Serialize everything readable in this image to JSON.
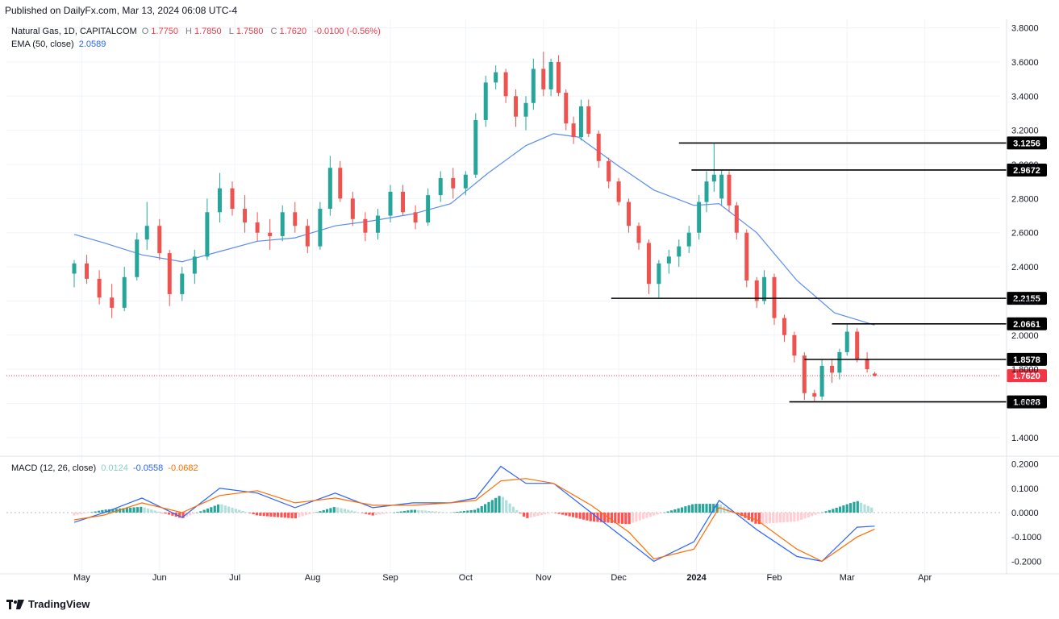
{
  "published": "Published on DailyFx.com, Mar 13, 2024 06:08 UTC-4",
  "brand": "TradingView",
  "main_legend": {
    "instrument": "Natural Gas, 1D, CAPITALCOM",
    "open_label": "O",
    "open": "1.7750",
    "high_label": "H",
    "high": "1.7850",
    "low_label": "L",
    "low": "1.7580",
    "close_label": "C",
    "close": "1.7620",
    "change": "-0.0100 (-0.56%)"
  },
  "ema_legend": {
    "label": "EMA (50, close)",
    "value": "2.0589"
  },
  "macd_legend": {
    "label": "MACD (12, 26, close)",
    "hist": "0.0124",
    "macd": "-0.0558",
    "signal": "-0.0682"
  },
  "colors": {
    "up": "#26a69a",
    "down": "#ef5350",
    "ema": "#5b8def",
    "macd": "#2962ff",
    "signal": "#ff6d00",
    "price_line": "#f23645",
    "level": "#000000"
  },
  "chart_data": [
    {
      "type": "candlestick",
      "title": "Natural Gas, 1D, CAPITALCOM",
      "x_tick_labels": [
        "May",
        "Jun",
        "Jul",
        "Aug",
        "Sep",
        "Oct",
        "Nov",
        "Dec",
        "2024",
        "Feb",
        "Mar",
        "Apr"
      ],
      "y_tick_labels": [
        "3.8000",
        "3.6000",
        "3.4000",
        "3.2000",
        "3.0000",
        "2.8000",
        "2.6000",
        "2.4000",
        "2.2000",
        "2.0000",
        "1.8000",
        "1.6000",
        "1.4000"
      ],
      "ylim": [
        1.3,
        3.85
      ],
      "last_price": 1.762,
      "last_price_label": "1.7620",
      "horizontal_levels": [
        {
          "value": 3.1256,
          "label": "3.1256",
          "from": "2023-12-25",
          "to": "2024-02-27"
        },
        {
          "value": 2.9672,
          "label": "2.9672",
          "from": "2023-12-30",
          "to": "2024-02-27"
        },
        {
          "value": 2.2155,
          "label": "2.2155",
          "from": "2023-11-28",
          "to": "2024-02-27"
        },
        {
          "value": 2.0661,
          "label": "2.0661",
          "from": "2024-02-24",
          "to": "2024-02-27"
        },
        {
          "value": 1.8578,
          "label": "1.8578",
          "from": "2024-02-13",
          "to": "2024-02-27"
        },
        {
          "value": 1.6088,
          "label": "1.6088",
          "from": "2024-02-07",
          "to": "2024-02-27"
        }
      ],
      "ema_50": [
        {
          "date": "2023-04-28",
          "value": 2.59
        },
        {
          "date": "2023-05-10",
          "value": 2.54
        },
        {
          "date": "2023-05-25",
          "value": 2.47
        },
        {
          "date": "2023-06-10",
          "value": 2.43
        },
        {
          "date": "2023-06-25",
          "value": 2.49
        },
        {
          "date": "2023-07-10",
          "value": 2.55
        },
        {
          "date": "2023-07-25",
          "value": 2.57
        },
        {
          "date": "2023-08-10",
          "value": 2.64
        },
        {
          "date": "2023-08-25",
          "value": 2.67
        },
        {
          "date": "2023-09-10",
          "value": 2.71
        },
        {
          "date": "2023-09-25",
          "value": 2.77
        },
        {
          "date": "2023-10-10",
          "value": 2.95
        },
        {
          "date": "2023-10-25",
          "value": 3.11
        },
        {
          "date": "2023-11-05",
          "value": 3.18
        },
        {
          "date": "2023-11-15",
          "value": 3.16
        },
        {
          "date": "2023-11-30",
          "value": 3.0
        },
        {
          "date": "2023-12-15",
          "value": 2.85
        },
        {
          "date": "2023-12-31",
          "value": 2.76
        },
        {
          "date": "2024-01-10",
          "value": 2.77
        },
        {
          "date": "2024-01-25",
          "value": 2.6
        },
        {
          "date": "2024-02-10",
          "value": 2.32
        },
        {
          "date": "2024-02-25",
          "value": 2.13
        },
        {
          "date": "2024-03-12",
          "value": 2.0589
        }
      ],
      "candles": [
        {
          "date": "2023-04-28",
          "o": 2.36,
          "h": 2.44,
          "l": 2.28,
          "c": 2.42
        },
        {
          "date": "2023-05-03",
          "o": 2.42,
          "h": 2.47,
          "l": 2.3,
          "c": 2.33
        },
        {
          "date": "2023-05-08",
          "o": 2.33,
          "h": 2.38,
          "l": 2.18,
          "c": 2.22
        },
        {
          "date": "2023-05-13",
          "o": 2.22,
          "h": 2.3,
          "l": 2.1,
          "c": 2.16
        },
        {
          "date": "2023-05-18",
          "o": 2.16,
          "h": 2.4,
          "l": 2.14,
          "c": 2.34
        },
        {
          "date": "2023-05-23",
          "o": 2.34,
          "h": 2.6,
          "l": 2.32,
          "c": 2.56
        },
        {
          "date": "2023-05-27",
          "o": 2.56,
          "h": 2.78,
          "l": 2.5,
          "c": 2.64
        },
        {
          "date": "2023-06-01",
          "o": 2.64,
          "h": 2.68,
          "l": 2.44,
          "c": 2.48
        },
        {
          "date": "2023-06-05",
          "o": 2.48,
          "h": 2.5,
          "l": 2.17,
          "c": 2.24
        },
        {
          "date": "2023-06-10",
          "o": 2.24,
          "h": 2.4,
          "l": 2.2,
          "c": 2.36
        },
        {
          "date": "2023-06-15",
          "o": 2.36,
          "h": 2.5,
          "l": 2.3,
          "c": 2.46
        },
        {
          "date": "2023-06-20",
          "o": 2.46,
          "h": 2.8,
          "l": 2.44,
          "c": 2.72
        },
        {
          "date": "2023-06-25",
          "o": 2.72,
          "h": 2.95,
          "l": 2.66,
          "c": 2.86
        },
        {
          "date": "2023-06-30",
          "o": 2.86,
          "h": 2.9,
          "l": 2.7,
          "c": 2.74
        },
        {
          "date": "2023-07-05",
          "o": 2.74,
          "h": 2.82,
          "l": 2.6,
          "c": 2.66
        },
        {
          "date": "2023-07-10",
          "o": 2.66,
          "h": 2.72,
          "l": 2.55,
          "c": 2.6
        },
        {
          "date": "2023-07-15",
          "o": 2.6,
          "h": 2.68,
          "l": 2.5,
          "c": 2.58
        },
        {
          "date": "2023-07-20",
          "o": 2.58,
          "h": 2.76,
          "l": 2.55,
          "c": 2.72
        },
        {
          "date": "2023-07-25",
          "o": 2.72,
          "h": 2.78,
          "l": 2.6,
          "c": 2.64
        },
        {
          "date": "2023-07-30",
          "o": 2.64,
          "h": 2.68,
          "l": 2.48,
          "c": 2.52
        },
        {
          "date": "2023-08-04",
          "o": 2.52,
          "h": 2.78,
          "l": 2.5,
          "c": 2.74
        },
        {
          "date": "2023-08-08",
          "o": 2.74,
          "h": 3.05,
          "l": 2.7,
          "c": 2.98
        },
        {
          "date": "2023-08-12",
          "o": 2.98,
          "h": 3.02,
          "l": 2.78,
          "c": 2.8
        },
        {
          "date": "2023-08-17",
          "o": 2.8,
          "h": 2.84,
          "l": 2.64,
          "c": 2.68
        },
        {
          "date": "2023-08-22",
          "o": 2.68,
          "h": 2.72,
          "l": 2.55,
          "c": 2.6
        },
        {
          "date": "2023-08-27",
          "o": 2.6,
          "h": 2.74,
          "l": 2.56,
          "c": 2.7
        },
        {
          "date": "2023-09-01",
          "o": 2.7,
          "h": 2.88,
          "l": 2.66,
          "c": 2.84
        },
        {
          "date": "2023-09-06",
          "o": 2.84,
          "h": 2.88,
          "l": 2.7,
          "c": 2.72
        },
        {
          "date": "2023-09-11",
          "o": 2.72,
          "h": 2.76,
          "l": 2.62,
          "c": 2.66
        },
        {
          "date": "2023-09-16",
          "o": 2.66,
          "h": 2.86,
          "l": 2.64,
          "c": 2.82
        },
        {
          "date": "2023-09-21",
          "o": 2.82,
          "h": 2.96,
          "l": 2.78,
          "c": 2.92
        },
        {
          "date": "2023-09-26",
          "o": 2.92,
          "h": 2.98,
          "l": 2.8,
          "c": 2.86
        },
        {
          "date": "2023-10-01",
          "o": 2.86,
          "h": 2.96,
          "l": 2.82,
          "c": 2.94
        },
        {
          "date": "2023-10-05",
          "o": 2.94,
          "h": 3.3,
          "l": 2.92,
          "c": 3.26
        },
        {
          "date": "2023-10-09",
          "o": 3.26,
          "h": 3.52,
          "l": 3.22,
          "c": 3.48
        },
        {
          "date": "2023-10-13",
          "o": 3.48,
          "h": 3.58,
          "l": 3.44,
          "c": 3.54
        },
        {
          "date": "2023-10-17",
          "o": 3.54,
          "h": 3.56,
          "l": 3.36,
          "c": 3.4
        },
        {
          "date": "2023-10-21",
          "o": 3.4,
          "h": 3.44,
          "l": 3.22,
          "c": 3.28
        },
        {
          "date": "2023-10-25",
          "o": 3.28,
          "h": 3.4,
          "l": 3.2,
          "c": 3.36
        },
        {
          "date": "2023-10-28",
          "o": 3.36,
          "h": 3.62,
          "l": 3.32,
          "c": 3.56
        },
        {
          "date": "2023-11-01",
          "o": 3.56,
          "h": 3.66,
          "l": 3.4,
          "c": 3.44
        },
        {
          "date": "2023-11-04",
          "o": 3.44,
          "h": 3.62,
          "l": 3.4,
          "c": 3.6
        },
        {
          "date": "2023-11-07",
          "o": 3.6,
          "h": 3.64,
          "l": 3.4,
          "c": 3.42
        },
        {
          "date": "2023-11-10",
          "o": 3.42,
          "h": 3.44,
          "l": 3.2,
          "c": 3.24
        },
        {
          "date": "2023-11-13",
          "o": 3.24,
          "h": 3.28,
          "l": 3.12,
          "c": 3.16
        },
        {
          "date": "2023-11-16",
          "o": 3.16,
          "h": 3.38,
          "l": 3.14,
          "c": 3.34
        },
        {
          "date": "2023-11-19",
          "o": 3.34,
          "h": 3.38,
          "l": 3.16,
          "c": 3.18
        },
        {
          "date": "2023-11-23",
          "o": 3.18,
          "h": 3.2,
          "l": 2.98,
          "c": 3.02
        },
        {
          "date": "2023-11-27",
          "o": 3.02,
          "h": 3.04,
          "l": 2.86,
          "c": 2.9
        },
        {
          "date": "2023-12-01",
          "o": 2.9,
          "h": 2.92,
          "l": 2.76,
          "c": 2.78
        },
        {
          "date": "2023-12-05",
          "o": 2.78,
          "h": 2.8,
          "l": 2.6,
          "c": 2.64
        },
        {
          "date": "2023-12-09",
          "o": 2.64,
          "h": 2.66,
          "l": 2.5,
          "c": 2.54
        },
        {
          "date": "2023-12-13",
          "o": 2.54,
          "h": 2.56,
          "l": 2.24,
          "c": 2.3
        },
        {
          "date": "2023-12-17",
          "o": 2.3,
          "h": 2.44,
          "l": 2.22,
          "c": 2.42
        },
        {
          "date": "2023-12-21",
          "o": 2.42,
          "h": 2.5,
          "l": 2.36,
          "c": 2.46
        },
        {
          "date": "2023-12-25",
          "o": 2.46,
          "h": 2.56,
          "l": 2.4,
          "c": 2.52
        },
        {
          "date": "2023-12-29",
          "o": 2.52,
          "h": 2.64,
          "l": 2.48,
          "c": 2.6
        },
        {
          "date": "2024-01-02",
          "o": 2.6,
          "h": 2.82,
          "l": 2.56,
          "c": 2.78
        },
        {
          "date": "2024-01-05",
          "o": 2.78,
          "h": 2.96,
          "l": 2.72,
          "c": 2.9
        },
        {
          "date": "2024-01-08",
          "o": 2.9,
          "h": 3.1256,
          "l": 2.84,
          "c": 2.94
        },
        {
          "date": "2024-01-11",
          "o": 2.8,
          "h": 2.9672,
          "l": 2.76,
          "c": 2.94
        },
        {
          "date": "2024-01-14",
          "o": 2.94,
          "h": 2.96,
          "l": 2.72,
          "c": 2.76
        },
        {
          "date": "2024-01-17",
          "o": 2.76,
          "h": 2.78,
          "l": 2.56,
          "c": 2.6
        },
        {
          "date": "2024-01-21",
          "o": 2.6,
          "h": 2.62,
          "l": 2.28,
          "c": 2.32
        },
        {
          "date": "2024-01-25",
          "o": 2.32,
          "h": 2.34,
          "l": 2.16,
          "c": 2.2
        },
        {
          "date": "2024-01-28",
          "o": 2.2,
          "h": 2.38,
          "l": 2.18,
          "c": 2.34
        },
        {
          "date": "2024-02-01",
          "o": 2.34,
          "h": 2.36,
          "l": 2.06,
          "c": 2.1
        },
        {
          "date": "2024-02-05",
          "o": 2.1,
          "h": 2.12,
          "l": 1.96,
          "c": 2.0
        },
        {
          "date": "2024-02-09",
          "o": 2.0,
          "h": 2.02,
          "l": 1.84,
          "c": 1.88
        },
        {
          "date": "2024-02-13",
          "o": 1.88,
          "h": 1.9,
          "l": 1.62,
          "c": 1.66
        },
        {
          "date": "2024-02-17",
          "o": 1.66,
          "h": 1.68,
          "l": 1.6088,
          "c": 1.64
        },
        {
          "date": "2024-02-20",
          "o": 1.64,
          "h": 1.8578,
          "l": 1.62,
          "c": 1.82
        },
        {
          "date": "2024-02-24",
          "o": 1.82,
          "h": 1.86,
          "l": 1.72,
          "c": 1.78
        },
        {
          "date": "2024-02-27",
          "o": 1.78,
          "h": 1.92,
          "l": 1.74,
          "c": 1.9
        },
        {
          "date": "2024-03-01",
          "o": 1.9,
          "h": 2.0661,
          "l": 1.88,
          "c": 2.02
        },
        {
          "date": "2024-03-05",
          "o": 2.02,
          "h": 2.04,
          "l": 1.84,
          "c": 1.86
        },
        {
          "date": "2024-03-09",
          "o": 1.86,
          "h": 1.9,
          "l": 1.78,
          "c": 1.8
        },
        {
          "date": "2024-03-12",
          "o": 1.775,
          "h": 1.785,
          "l": 1.758,
          "c": 1.762
        }
      ]
    },
    {
      "type": "macd",
      "title": "MACD (12, 26, close)",
      "y_tick_labels": [
        "0.2000",
        "0.1000",
        "0.0000",
        "-0.1000",
        "-0.2000"
      ],
      "ylim": [
        -0.245,
        0.225
      ],
      "macd": [
        {
          "date": "2023-04-28",
          "value": -0.04
        },
        {
          "date": "2023-05-10",
          "value": 0.0
        },
        {
          "date": "2023-05-25",
          "value": 0.06
        },
        {
          "date": "2023-06-10",
          "value": -0.02
        },
        {
          "date": "2023-06-25",
          "value": 0.1
        },
        {
          "date": "2023-07-10",
          "value": 0.08
        },
        {
          "date": "2023-07-25",
          "value": 0.02
        },
        {
          "date": "2023-08-10",
          "value": 0.08
        },
        {
          "date": "2023-08-25",
          "value": 0.02
        },
        {
          "date": "2023-09-10",
          "value": 0.04
        },
        {
          "date": "2023-09-25",
          "value": 0.04
        },
        {
          "date": "2023-10-05",
          "value": 0.06
        },
        {
          "date": "2023-10-15",
          "value": 0.19
        },
        {
          "date": "2023-10-25",
          "value": 0.12
        },
        {
          "date": "2023-11-05",
          "value": 0.12
        },
        {
          "date": "2023-11-20",
          "value": 0.0
        },
        {
          "date": "2023-12-05",
          "value": -0.12
        },
        {
          "date": "2023-12-15",
          "value": -0.2
        },
        {
          "date": "2023-12-31",
          "value": -0.12
        },
        {
          "date": "2024-01-10",
          "value": 0.05
        },
        {
          "date": "2024-01-25",
          "value": -0.07
        },
        {
          "date": "2024-02-10",
          "value": -0.18
        },
        {
          "date": "2024-02-20",
          "value": -0.2
        },
        {
          "date": "2024-03-05",
          "value": -0.06
        },
        {
          "date": "2024-03-12",
          "value": -0.0558
        }
      ],
      "signal": [
        {
          "date": "2023-04-28",
          "value": -0.03
        },
        {
          "date": "2023-05-10",
          "value": -0.01
        },
        {
          "date": "2023-05-25",
          "value": 0.04
        },
        {
          "date": "2023-06-10",
          "value": 0.0
        },
        {
          "date": "2023-06-25",
          "value": 0.07
        },
        {
          "date": "2023-07-10",
          "value": 0.09
        },
        {
          "date": "2023-07-25",
          "value": 0.04
        },
        {
          "date": "2023-08-10",
          "value": 0.06
        },
        {
          "date": "2023-08-25",
          "value": 0.03
        },
        {
          "date": "2023-09-10",
          "value": 0.03
        },
        {
          "date": "2023-09-25",
          "value": 0.04
        },
        {
          "date": "2023-10-05",
          "value": 0.05
        },
        {
          "date": "2023-10-15",
          "value": 0.13
        },
        {
          "date": "2023-10-25",
          "value": 0.14
        },
        {
          "date": "2023-11-05",
          "value": 0.12
        },
        {
          "date": "2023-11-20",
          "value": 0.03
        },
        {
          "date": "2023-12-05",
          "value": -0.08
        },
        {
          "date": "2023-12-15",
          "value": -0.19
        },
        {
          "date": "2023-12-31",
          "value": -0.15
        },
        {
          "date": "2024-01-10",
          "value": 0.02
        },
        {
          "date": "2024-01-25",
          "value": -0.03
        },
        {
          "date": "2024-02-10",
          "value": -0.15
        },
        {
          "date": "2024-02-20",
          "value": -0.2
        },
        {
          "date": "2024-03-05",
          "value": -0.1
        },
        {
          "date": "2024-03-12",
          "value": -0.0682
        }
      ],
      "last_values": {
        "hist": 0.0124,
        "macd": -0.0558,
        "signal": -0.0682
      }
    }
  ]
}
